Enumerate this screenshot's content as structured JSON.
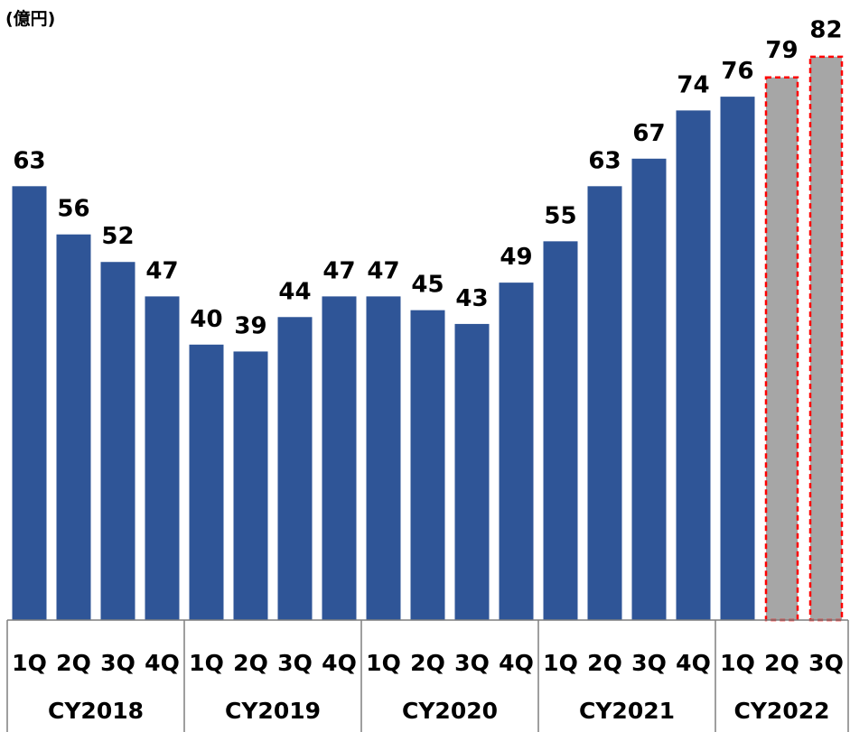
{
  "chart_data": {
    "type": "bar",
    "unit": "(億円)",
    "quarters": [
      "1Q",
      "2Q",
      "3Q",
      "4Q",
      "1Q",
      "2Q",
      "3Q",
      "4Q",
      "1Q",
      "2Q",
      "3Q",
      "4Q",
      "1Q",
      "2Q",
      "3Q",
      "4Q",
      "1Q",
      "2Q",
      "3Q"
    ],
    "years": [
      {
        "label": "CY2018",
        "quarters": 4
      },
      {
        "label": "CY2019",
        "quarters": 4
      },
      {
        "label": "CY2020",
        "quarters": 4
      },
      {
        "label": "CY2021",
        "quarters": 4
      },
      {
        "label": "CY2022",
        "quarters": 3
      }
    ],
    "values": [
      63,
      56,
      52,
      47,
      40,
      39,
      44,
      47,
      47,
      45,
      43,
      49,
      55,
      63,
      67,
      74,
      76,
      79,
      82
    ],
    "forecast": [
      false,
      false,
      false,
      false,
      false,
      false,
      false,
      false,
      false,
      false,
      false,
      false,
      false,
      false,
      false,
      false,
      false,
      true,
      true
    ],
    "ylim": [
      0,
      90
    ],
    "colors": {
      "actual": "#2f5597",
      "forecast_fill": "#a6a6a6",
      "forecast_border": "#ff0000",
      "label": "#000000",
      "grid": "#7f7f7f"
    },
    "grid": false,
    "legend": "none"
  }
}
